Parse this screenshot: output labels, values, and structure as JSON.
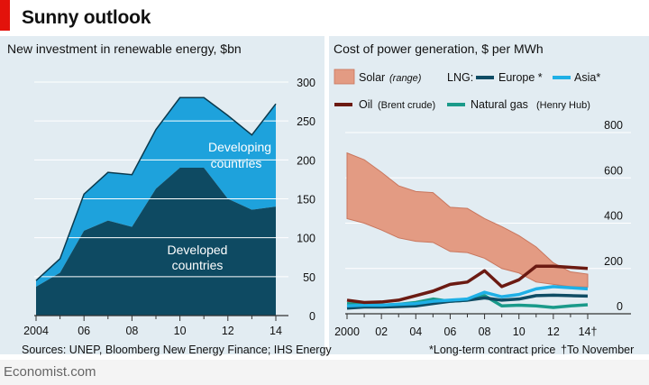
{
  "header": {
    "title": "Sunny outlook"
  },
  "footer": {
    "sources": "Sources: UNEP, Bloomberg New Energy Finance; IHS Energy",
    "note_star": "*Long-term contract price",
    "note_dagger": "†To November",
    "brand": "Economist.com"
  },
  "colors": {
    "panel_bg": "#e2ecf2",
    "developed": "#0e4a62",
    "developing": "#1ea2dc",
    "solar": "#e39b83",
    "oil": "#6b1a12",
    "lng_europe": "#0f4c64",
    "lng_asia": "#1fb0e6",
    "natgas": "#1a9a8a",
    "brand_red": "#e3120b"
  },
  "chart_data": [
    {
      "type": "area",
      "title": "New investment in renewable energy, $bn",
      "x": [
        2004,
        2005,
        2006,
        2007,
        2008,
        2009,
        2010,
        2011,
        2012,
        2013,
        2014
      ],
      "xticks": [
        "2004",
        "06",
        "08",
        "10",
        "12",
        "14"
      ],
      "yticks": [
        "0",
        "50",
        "100",
        "150",
        "200",
        "250",
        "300"
      ],
      "ylim": [
        0,
        300
      ],
      "stacked": true,
      "series": [
        {
          "name": "Developed countries",
          "values": [
            37,
            55,
            109,
            122,
            114,
            163,
            190,
            190,
            150,
            136,
            140
          ]
        },
        {
          "name": "Developing countries",
          "values": [
            8,
            18,
            47,
            62,
            67,
            76,
            90,
            90,
            107,
            96,
            132
          ]
        }
      ],
      "labels": {
        "developed": [
          "Developed",
          "countries"
        ],
        "developing": [
          "Developing",
          "countries"
        ]
      }
    },
    {
      "type": "line",
      "title": "Cost of power generation, $ per MWh",
      "x": [
        2000,
        2001,
        2002,
        2003,
        2004,
        2005,
        2006,
        2007,
        2008,
        2009,
        2010,
        2011,
        2012,
        2013,
        2014
      ],
      "xticks": [
        "2000",
        "02",
        "04",
        "06",
        "08",
        "10",
        "12",
        "14†"
      ],
      "yticks": [
        "0",
        "200",
        "400",
        "600",
        "800"
      ],
      "ylim": [
        0,
        800
      ],
      "legend": {
        "solar": "Solar",
        "solar_note": "(range)",
        "lng": "LNG:",
        "europe": "Europe *",
        "asia": "Asia*",
        "oil": "Oil",
        "oil_note": "(Brent crude)",
        "natgas": "Natural gas",
        "natgas_note": "(Henry Hub)"
      },
      "solar_range": {
        "low": [
          420,
          400,
          370,
          335,
          320,
          315,
          275,
          270,
          245,
          200,
          180,
          140,
          130,
          120,
          118
        ],
        "high": [
          710,
          680,
          625,
          565,
          540,
          535,
          470,
          465,
          420,
          385,
          345,
          295,
          225,
          185,
          175
        ]
      },
      "series": [
        {
          "name": "Oil",
          "values": [
            60,
            50,
            52,
            60,
            80,
            100,
            130,
            140,
            190,
            120,
            150,
            210,
            210,
            205,
            200
          ]
        },
        {
          "name": "Europe",
          "values": [
            25,
            30,
            30,
            32,
            35,
            45,
            55,
            60,
            70,
            60,
            65,
            80,
            82,
            80,
            78
          ]
        },
        {
          "name": "Asia",
          "values": [
            35,
            38,
            38,
            42,
            45,
            55,
            60,
            65,
            95,
            75,
            85,
            110,
            120,
            115,
            110
          ]
        },
        {
          "name": "Natural gas",
          "values": [
            45,
            42,
            38,
            42,
            50,
            65,
            55,
            60,
            80,
            35,
            38,
            35,
            28,
            35,
            40
          ]
        }
      ]
    }
  ]
}
